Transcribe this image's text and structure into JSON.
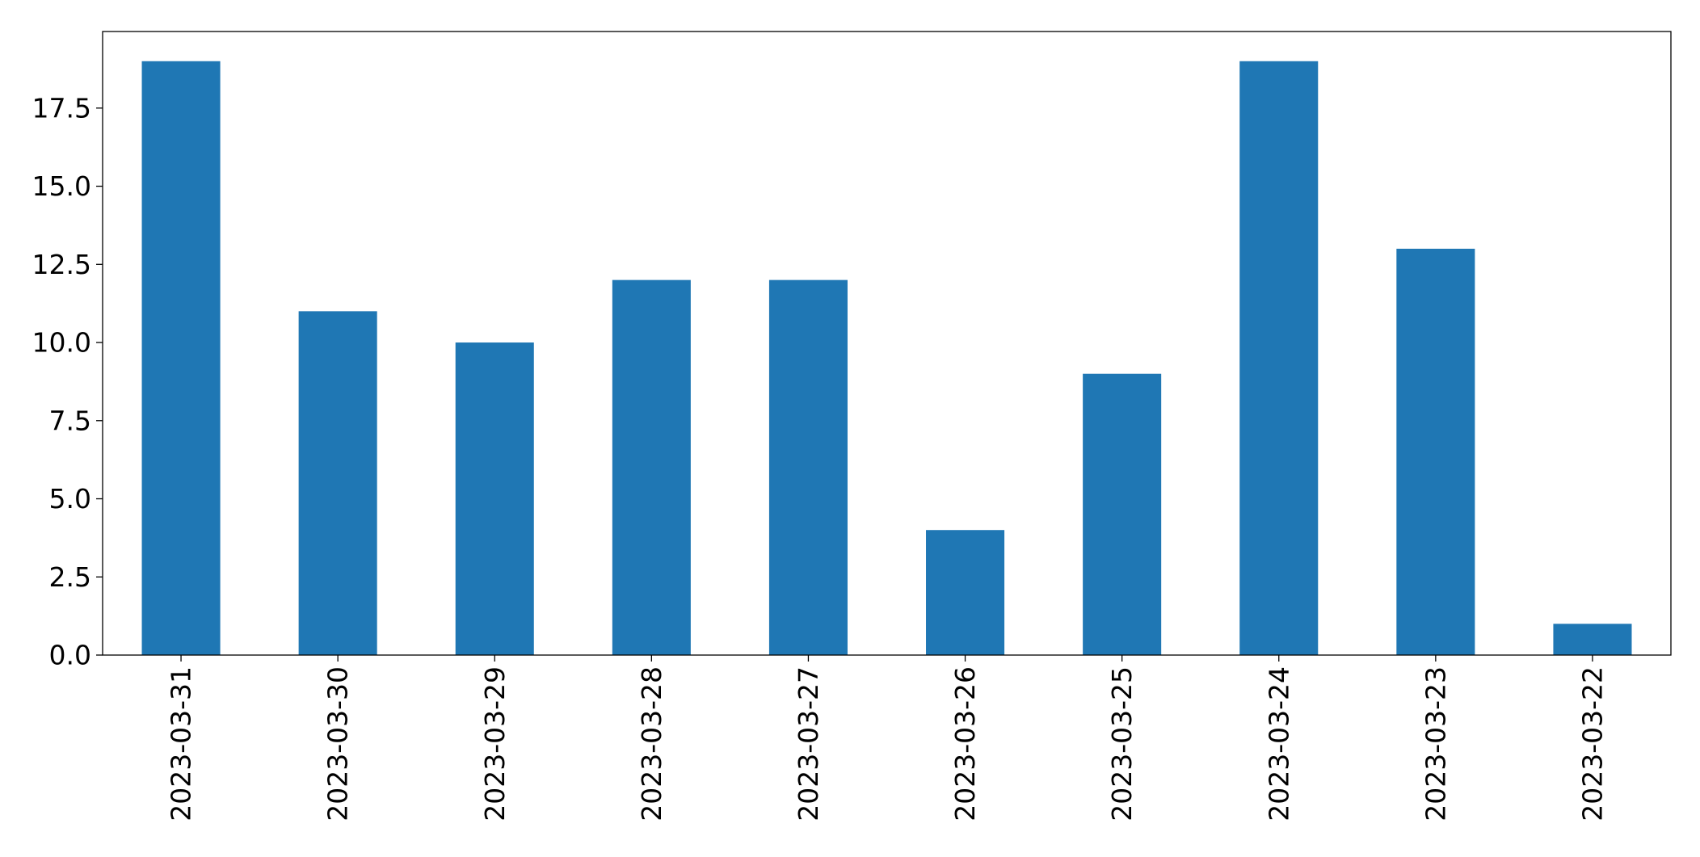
{
  "chart_data": {
    "type": "bar",
    "title": "",
    "xlabel": "",
    "ylabel": "",
    "categories": [
      "2023-03-31",
      "2023-03-30",
      "2023-03-29",
      "2023-03-28",
      "2023-03-27",
      "2023-03-26",
      "2023-03-25",
      "2023-03-24",
      "2023-03-23",
      "2023-03-22"
    ],
    "values": [
      19,
      11,
      10,
      12,
      12,
      4,
      9,
      19,
      13,
      1
    ],
    "ylim": [
      0,
      19.95
    ],
    "yticks": [
      0.0,
      2.5,
      5.0,
      7.5,
      10.0,
      12.5,
      15.0,
      17.5
    ],
    "ytick_labels": [
      "0.0",
      "2.5",
      "5.0",
      "7.5",
      "10.0",
      "12.5",
      "15.0",
      "17.5"
    ],
    "grid": false,
    "legend": "none",
    "colors": {
      "bar": "#1f77b4",
      "axes": "#000000",
      "background": "#ffffff"
    }
  }
}
